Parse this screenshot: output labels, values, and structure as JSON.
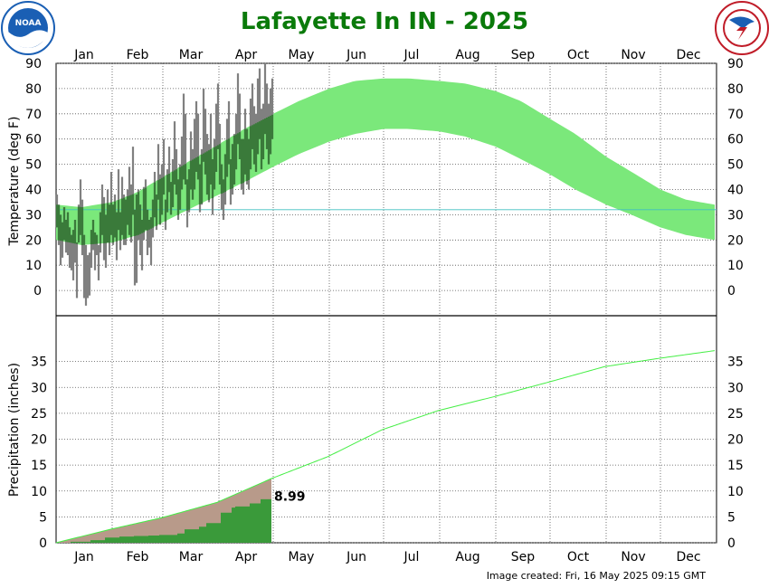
{
  "chart_data": [
    {
      "type": "bar",
      "title": "Lafayette In IN - 2025",
      "ylabel": "Temperature (deg F)",
      "ylim": [
        -10,
        90
      ],
      "yticks": [
        0,
        10,
        20,
        30,
        40,
        50,
        60,
        70,
        80,
        90
      ],
      "months": [
        "Jan",
        "Feb",
        "Mar",
        "Apr",
        "May",
        "Jun",
        "Jul",
        "Aug",
        "Sep",
        "Oct",
        "Nov",
        "Dec"
      ],
      "freezing_line": 32,
      "grid": true,
      "normal_range": {
        "days": [
          1,
          15,
          32,
          46,
          60,
          74,
          91,
          105,
          121,
          135,
          152,
          166,
          182,
          196,
          213,
          227,
          244,
          258,
          274,
          288,
          305,
          319,
          335,
          349,
          365
        ],
        "high": [
          34,
          33,
          35,
          39,
          45,
          51,
          58,
          64,
          70,
          75,
          80,
          83,
          84,
          84,
          83,
          82,
          79,
          75,
          68,
          62,
          53,
          47,
          40,
          36,
          34
        ],
        "low": [
          20,
          18,
          19,
          22,
          27,
          32,
          38,
          43,
          49,
          54,
          59,
          62,
          64,
          64,
          63,
          61,
          57,
          52,
          46,
          40,
          34,
          30,
          25,
          22,
          20
        ]
      },
      "observed": {
        "start_day": 1,
        "high": [
          38,
          34,
          30,
          27,
          33,
          28,
          31,
          25,
          22,
          24,
          28,
          19,
          34,
          44,
          36,
          22,
          18,
          14,
          15,
          24,
          28,
          23,
          22,
          18,
          31,
          42,
          37,
          30,
          40,
          34,
          47,
          34,
          38,
          31,
          48,
          31,
          45,
          38,
          36,
          40,
          49,
          42,
          57,
          32,
          38,
          40,
          34,
          28,
          41,
          44,
          32,
          28,
          29,
          36,
          47,
          38,
          58,
          46,
          50,
          60,
          36,
          48,
          57,
          43,
          52,
          67,
          56,
          44,
          50,
          61,
          78,
          70,
          44,
          48,
          63,
          56,
          68,
          75,
          70,
          50,
          56,
          80,
          72,
          62,
          58,
          70,
          52,
          60,
          74,
          82,
          66,
          50,
          44,
          54,
          68,
          75,
          52,
          58,
          62,
          70,
          86,
          78,
          60,
          60,
          72,
          64,
          60,
          76,
          82,
          73,
          70,
          84,
          88,
          72,
          74,
          90,
          82,
          74,
          80,
          84
        ],
        "low": [
          25,
          18,
          10,
          13,
          20,
          15,
          14,
          9,
          8,
          4,
          11,
          -3,
          19,
          22,
          14,
          -3,
          -6,
          -3,
          -2,
          9,
          16,
          8,
          14,
          4,
          15,
          22,
          12,
          9,
          19,
          14,
          22,
          18,
          21,
          12,
          24,
          16,
          22,
          18,
          18,
          26,
          22,
          19,
          30,
          2,
          3,
          20,
          14,
          8,
          20,
          24,
          14,
          17,
          10,
          21,
          29,
          24,
          36,
          26,
          30,
          38,
          24,
          31,
          39,
          30,
          33,
          42,
          38,
          28,
          32,
          40,
          44,
          42,
          25,
          31,
          40,
          36,
          40,
          47,
          44,
          31,
          34,
          51,
          46,
          38,
          35,
          42,
          30,
          40,
          47,
          56,
          42,
          32,
          28,
          34,
          45,
          50,
          34,
          38,
          42,
          48,
          58,
          52,
          40,
          38,
          46,
          42,
          40,
          48,
          56,
          50,
          47,
          54,
          60,
          48,
          52,
          62,
          56,
          50,
          54,
          60
        ]
      }
    },
    {
      "type": "area",
      "ylabel": "Precipitation (inches)",
      "ylim": [
        0,
        40
      ],
      "yticks": [
        0,
        5,
        10,
        15,
        20,
        25,
        30,
        35
      ],
      "grid": true,
      "normal_cumulative": {
        "days": [
          1,
          31,
          59,
          90,
          120,
          151,
          181,
          212,
          243,
          273,
          304,
          334,
          365
        ],
        "values": [
          0,
          2.6,
          4.8,
          7.8,
          12.4,
          16.6,
          21.8,
          25.5,
          28.2,
          31.0,
          34.0,
          35.6,
          37.1
        ]
      },
      "observed_cumulative": {
        "days": [
          1,
          9,
          20,
          28,
          36,
          44,
          52,
          58,
          68,
          72,
          80,
          84,
          92,
          98,
          100,
          108,
          114,
          120
        ],
        "values": [
          0,
          0.2,
          0.5,
          1.0,
          1.2,
          1.3,
          1.4,
          1.5,
          1.8,
          2.6,
          3.1,
          3.8,
          5.8,
          6.8,
          7.0,
          7.6,
          8.4,
          8.99
        ]
      },
      "observed_total_label": "8.99"
    }
  ],
  "footer": {
    "image_created": "Image created: Fri, 16 May 2025 09:15 GMT"
  },
  "logos": {
    "left": {
      "icon": "noaa-logo",
      "text": "NOAA",
      "color": "#1a5fb4"
    },
    "right": {
      "icon": "nws-logo",
      "text": "NATIONAL WEATHER SERVICE",
      "color": "#c01c28"
    }
  },
  "colors": {
    "title": "#0a7a0a",
    "normal_band": "#7be87b",
    "observed_bar": "#808080",
    "freezing": "#40c0c0",
    "precip_normal_fill": "#b89a8a",
    "precip_observed_fill": "#3a9a3a",
    "precip_normal_line": "#44ee44"
  }
}
